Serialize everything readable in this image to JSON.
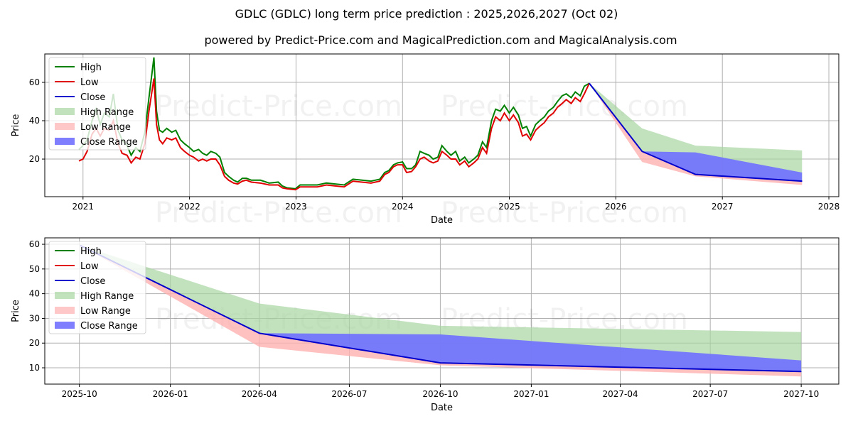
{
  "title": "GDLC (GDLC) long term price prediction : 2025,2026,2027 (Oct 02)",
  "subtitle": "powered by Predict-Price.com and MagicalPrediction.com and MagicalAnalysis.com",
  "watermark": "Predict-Price.com",
  "colors": {
    "high": "#008000",
    "low": "#e00000",
    "close": "#0000cc",
    "high_range": "#a8d5a2",
    "low_range": "#ffb0b0",
    "close_range": "#7070ff"
  },
  "legend": [
    "High",
    "Low",
    "Close",
    "High Range",
    "Low Range",
    "Close Range"
  ],
  "chart_data": [
    {
      "type": "line",
      "name": "full-history",
      "xlabel": "Date",
      "ylabel": "Price",
      "xlim": [
        "2020-08-23",
        "2028-02-04"
      ],
      "ylim": [
        0.4,
        74.8
      ],
      "xticks": [
        "2021",
        "2022",
        "2023",
        "2024",
        "2025",
        "2026",
        "2027",
        "2028"
      ],
      "yticks": [
        20,
        40,
        60
      ],
      "grid": true,
      "legend_position": "top-left",
      "history_columns": [
        "date",
        "high",
        "low"
      ],
      "history": [
        [
          "2020-12-18",
          25,
          19
        ],
        [
          "2021-01-01",
          27,
          20
        ],
        [
          "2021-01-15",
          30,
          24
        ],
        [
          "2021-02-01",
          40,
          33
        ],
        [
          "2021-02-15",
          46,
          36
        ],
        [
          "2021-03-01",
          38,
          32
        ],
        [
          "2021-03-15",
          44,
          36
        ],
        [
          "2021-04-01",
          42,
          35
        ],
        [
          "2021-04-15",
          54,
          40
        ],
        [
          "2021-05-01",
          35,
          28
        ],
        [
          "2021-05-15",
          30,
          23
        ],
        [
          "2021-06-01",
          27,
          22
        ],
        [
          "2021-06-15",
          22,
          18
        ],
        [
          "2021-07-01",
          26,
          21
        ],
        [
          "2021-07-15",
          24,
          20
        ],
        [
          "2021-08-01",
          34,
          28
        ],
        [
          "2021-08-15",
          52,
          45
        ],
        [
          "2021-09-01",
          73,
          62
        ],
        [
          "2021-09-10",
          45,
          38
        ],
        [
          "2021-09-20",
          35,
          30
        ],
        [
          "2021-10-01",
          34,
          28
        ],
        [
          "2021-10-15",
          36,
          31
        ],
        [
          "2021-11-01",
          34,
          30
        ],
        [
          "2021-11-15",
          35,
          31
        ],
        [
          "2021-12-01",
          30,
          26
        ],
        [
          "2021-12-15",
          28,
          24
        ],
        [
          "2022-01-01",
          26,
          22
        ],
        [
          "2022-01-15",
          24,
          21
        ],
        [
          "2022-02-01",
          25,
          19
        ],
        [
          "2022-02-15",
          23,
          20
        ],
        [
          "2022-03-01",
          22,
          19
        ],
        [
          "2022-03-15",
          24,
          20
        ],
        [
          "2022-04-01",
          23,
          20
        ],
        [
          "2022-04-15",
          21,
          17
        ],
        [
          "2022-05-01",
          13,
          11
        ],
        [
          "2022-05-15",
          11,
          9
        ],
        [
          "2022-06-01",
          9,
          7.5
        ],
        [
          "2022-06-15",
          8,
          7
        ],
        [
          "2022-07-01",
          10,
          8.5
        ],
        [
          "2022-07-15",
          10,
          9
        ],
        [
          "2022-08-01",
          9,
          8
        ],
        [
          "2022-09-01",
          9,
          7.5
        ],
        [
          "2022-10-01",
          7.5,
          6.5
        ],
        [
          "2022-11-01",
          8,
          6.5
        ],
        [
          "2022-11-15",
          6,
          5
        ],
        [
          "2022-12-01",
          5,
          4.5
        ],
        [
          "2022-12-30",
          4.5,
          4
        ],
        [
          "2023-01-15",
          6.5,
          5.5
        ],
        [
          "2023-02-15",
          6.5,
          5.5
        ],
        [
          "2023-03-15",
          6.5,
          5.5
        ],
        [
          "2023-04-15",
          7.5,
          6.5
        ],
        [
          "2023-05-15",
          7,
          6
        ],
        [
          "2023-06-15",
          6.5,
          5.5
        ],
        [
          "2023-07-15",
          9.5,
          8.5
        ],
        [
          "2023-08-15",
          9,
          8
        ],
        [
          "2023-09-15",
          8.5,
          7.5
        ],
        [
          "2023-10-15",
          9.5,
          8.5
        ],
        [
          "2023-11-01",
          13,
          12
        ],
        [
          "2023-11-15",
          14,
          13
        ],
        [
          "2023-12-01",
          17,
          16
        ],
        [
          "2023-12-15",
          18,
          17
        ],
        [
          "2024-01-01",
          18.5,
          17
        ],
        [
          "2024-01-15",
          15,
          13
        ],
        [
          "2024-02-01",
          15,
          13.5
        ],
        [
          "2024-02-15",
          17,
          16
        ],
        [
          "2024-03-01",
          24,
          20
        ],
        [
          "2024-03-15",
          23,
          21
        ],
        [
          "2024-04-01",
          22,
          19
        ],
        [
          "2024-04-15",
          20,
          18
        ],
        [
          "2024-05-01",
          21,
          19
        ],
        [
          "2024-05-15",
          27,
          24
        ],
        [
          "2024-06-01",
          24,
          22
        ],
        [
          "2024-06-15",
          22,
          20
        ],
        [
          "2024-07-01",
          24,
          20
        ],
        [
          "2024-07-15",
          19,
          17
        ],
        [
          "2024-08-01",
          21,
          19
        ],
        [
          "2024-08-15",
          18,
          16
        ],
        [
          "2024-09-01",
          20,
          18
        ],
        [
          "2024-09-15",
          22,
          20
        ],
        [
          "2024-10-01",
          29,
          26
        ],
        [
          "2024-10-15",
          26,
          23
        ],
        [
          "2024-11-01",
          40,
          36
        ],
        [
          "2024-11-15",
          46,
          42
        ],
        [
          "2024-12-01",
          45,
          40
        ],
        [
          "2024-12-15",
          48,
          44
        ],
        [
          "2025-01-01",
          44,
          40
        ],
        [
          "2025-01-15",
          47,
          43
        ],
        [
          "2025-02-01",
          43,
          39
        ],
        [
          "2025-02-15",
          36,
          32
        ],
        [
          "2025-03-01",
          37,
          33
        ],
        [
          "2025-03-15",
          32,
          30
        ],
        [
          "2025-04-01",
          38,
          35
        ],
        [
          "2025-04-15",
          40,
          37
        ],
        [
          "2025-05-01",
          42,
          39
        ],
        [
          "2025-05-15",
          45,
          42
        ],
        [
          "2025-06-01",
          47,
          44
        ],
        [
          "2025-06-15",
          50,
          47
        ],
        [
          "2025-07-01",
          53,
          49
        ],
        [
          "2025-07-15",
          54,
          51
        ],
        [
          "2025-08-01",
          52,
          49
        ],
        [
          "2025-08-15",
          55,
          52
        ],
        [
          "2025-09-01",
          53,
          50
        ],
        [
          "2025-09-15",
          58,
          54
        ],
        [
          "2025-10-02",
          59.5,
          59.5
        ]
      ]
    },
    {
      "type": "area",
      "name": "prediction",
      "xlabel": "Date",
      "ylabel": "Price",
      "xlim": [
        "2025-08-27",
        "2027-11-08"
      ],
      "ylim": [
        3.4,
        62.6
      ],
      "xticks": [
        "2025-10",
        "2026-01",
        "2026-04",
        "2026-07",
        "2026-10",
        "2027-01",
        "2027-04",
        "2027-07",
        "2027-10"
      ],
      "yticks": [
        10,
        20,
        30,
        40,
        50,
        60
      ],
      "grid": true,
      "legend_position": "top-left",
      "prediction_columns": [
        "date",
        "high",
        "close_upper",
        "close",
        "low"
      ],
      "prediction": [
        [
          "2025-10-02",
          59.5,
          59.5,
          59.5,
          59.5
        ],
        [
          "2026-04-01",
          36,
          24,
          24,
          18.5
        ],
        [
          "2026-10-01",
          27,
          23.5,
          12,
          11
        ],
        [
          "2027-10-01",
          24.5,
          13,
          8.5,
          6.5
        ]
      ]
    }
  ]
}
